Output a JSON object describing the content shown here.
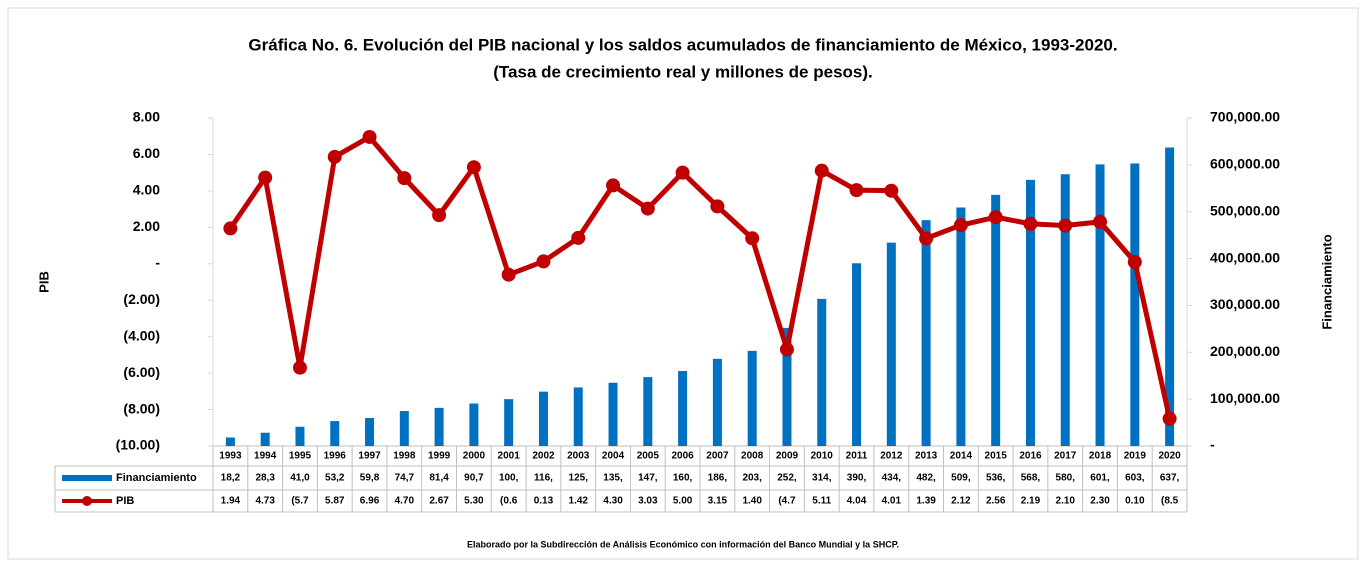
{
  "chart_data": {
    "type": "bar",
    "title": "Gráfica No. 6. Evolución del PIB nacional y los saldos acumulados de financiamiento de México, 1993-2020.",
    "subtitle": "(Tasa de crecimiento real y millones de pesos).",
    "y_label": "PIB",
    "y2_label": "Financiamiento",
    "note": "Elaborado por la Subdirección de Análisis Económico con información del Banco Mundial y la SHCP.",
    "categories": [
      "1993",
      "1994",
      "1995",
      "1996",
      "1997",
      "1998",
      "1999",
      "2000",
      "2001",
      "2002",
      "2003",
      "2004",
      "2005",
      "2006",
      "2007",
      "2008",
      "2009",
      "2010",
      "2011",
      "2012",
      "2013",
      "2014",
      "2015",
      "2016",
      "2017",
      "2018",
      "2019",
      "2020"
    ],
    "series": [
      {
        "name": "Financiamiento",
        "type": "bar",
        "axis": "y2",
        "color": "#0070c0",
        "values": [
          18200,
          28300,
          41000,
          53200,
          59800,
          74700,
          81400,
          90700,
          100000,
          116000,
          125000,
          135000,
          147000,
          160000,
          186000,
          203000,
          252000,
          314000,
          390000,
          434000,
          482000,
          509000,
          536000,
          568000,
          580000,
          601000,
          603000,
          637000
        ],
        "value_labels": [
          "18,2",
          "28,3",
          "41,0",
          "53,2",
          "59,8",
          "74,7",
          "81,4",
          "90,7",
          "100,",
          "116,",
          "125,",
          "135,",
          "147,",
          "160,",
          "186,",
          "203,",
          "252,",
          "314,",
          "390,",
          "434,",
          "482,",
          "509,",
          "536,",
          "568,",
          "580,",
          "601,",
          "603,",
          "637,"
        ]
      },
      {
        "name": "PIB",
        "type": "line",
        "color": "#c00000",
        "values": [
          1.94,
          4.73,
          -5.7,
          5.87,
          6.96,
          4.7,
          2.67,
          5.3,
          -0.6,
          0.13,
          1.42,
          4.3,
          3.03,
          5.0,
          3.15,
          1.4,
          -4.7,
          5.11,
          4.04,
          4.01,
          1.39,
          2.12,
          2.56,
          2.19,
          2.1,
          2.3,
          0.1,
          -8.5
        ],
        "value_labels": [
          "1.94",
          "4.73",
          "(5.7",
          "5.87",
          "6.96",
          "4.70",
          "2.67",
          "5.30",
          "(0.6",
          "0.13",
          "1.42",
          "4.30",
          "3.03",
          "5.00",
          "3.15",
          "1.40",
          "(4.7",
          "5.11",
          "4.04",
          "4.01",
          "1.39",
          "2.12",
          "2.56",
          "2.19",
          "2.10",
          "2.30",
          "0.10",
          "(8.5"
        ]
      }
    ],
    "ylim": [
      -10,
      8
    ],
    "yticks": [
      {
        "value": -10,
        "label": "(10.00)"
      },
      {
        "value": -8,
        "label": "(8.00)"
      },
      {
        "value": -6,
        "label": "(6.00)"
      },
      {
        "value": -4,
        "label": "(4.00)"
      },
      {
        "value": -2,
        "label": "(2.00)"
      },
      {
        "value": 0,
        "label": "-"
      },
      {
        "value": 2,
        "label": "2.00"
      },
      {
        "value": 4,
        "label": "4.00"
      },
      {
        "value": 6,
        "label": "6.00"
      },
      {
        "value": 8,
        "label": "8.00"
      }
    ],
    "y2lim": [
      0,
      700000
    ],
    "y2ticks": [
      {
        "value": 0,
        "label": "-"
      },
      {
        "value": 100000,
        "label": "100,000.00"
      },
      {
        "value": 200000,
        "label": "200,000.00"
      },
      {
        "value": 300000,
        "label": "300,000.00"
      },
      {
        "value": 400000,
        "label": "400,000.00"
      },
      {
        "value": 500000,
        "label": "500,000.00"
      },
      {
        "value": 600000,
        "label": "600,000.00"
      },
      {
        "value": 700000,
        "label": "700,000.00"
      }
    ]
  }
}
